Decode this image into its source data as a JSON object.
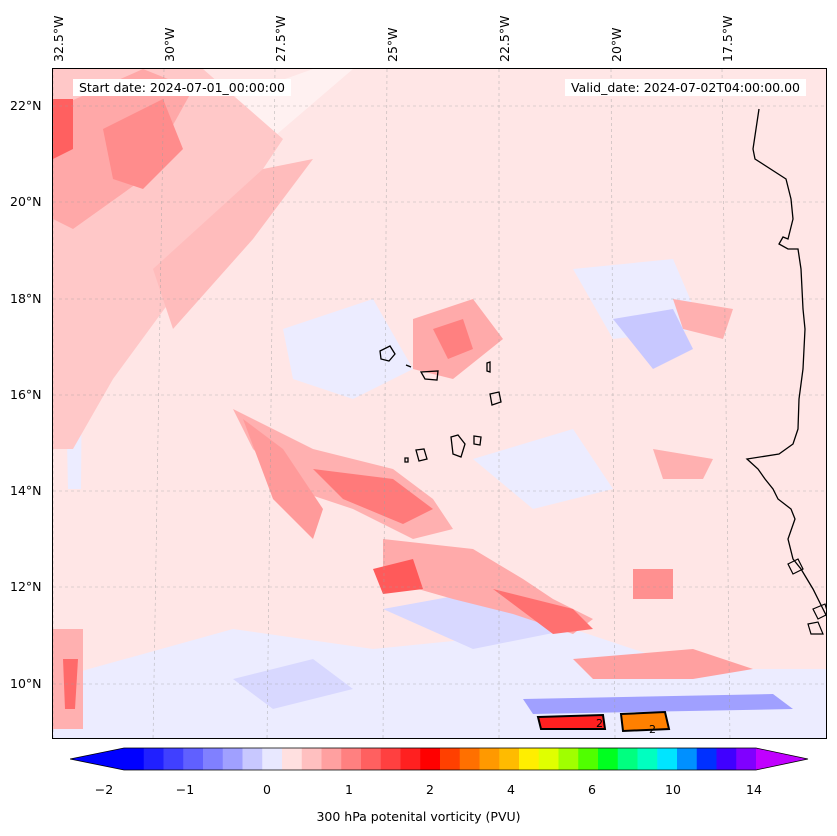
{
  "header": {
    "start_date": "Start date: 2024-07-01_00:00:00",
    "valid_date": "Valid_date: 2024-07-02T04:00:00.00"
  },
  "axes": {
    "longitude_labels": [
      "32.5°W",
      "30°W",
      "27.5°W",
      "25°W",
      "22.5°W",
      "20°W",
      "17.5°W"
    ],
    "latitude_labels": [
      "22°N",
      "20°N",
      "18°N",
      "16°N",
      "14°N",
      "12°N",
      "10°N"
    ],
    "grid": true
  },
  "map": {
    "field": "300 hPa potential vorticity",
    "contour_labels": [
      "2",
      "2"
    ],
    "coastline_color": "#000000"
  },
  "colorbar": {
    "label": "300 hPa potenital vorticity (PVU)",
    "tick_labels": [
      "−2",
      "−1",
      "0",
      "1",
      "2",
      "4",
      "6",
      "10",
      "14"
    ],
    "extend": "both",
    "colors": [
      "#0000ff",
      "#2020ff",
      "#4040ff",
      "#6060ff",
      "#8080ff",
      "#a0a0ff",
      "#c8c8ff",
      "#e8e8ff",
      "#ffe0e0",
      "#ffc0c0",
      "#ffa0a0",
      "#ff8080",
      "#ff6060",
      "#ff4040",
      "#ff2020",
      "#ff0000",
      "#ff4000",
      "#ff7000",
      "#ff9900",
      "#ffbb00",
      "#ffee00",
      "#e0ff00",
      "#a0ff00",
      "#50ff00",
      "#00ff20",
      "#00ff80",
      "#00ffc0",
      "#00e5ff",
      "#0090ff",
      "#0030ff",
      "#4000ff",
      "#8000ff"
    ],
    "under_color": "#0000ff",
    "over_color": "#c000ff"
  }
}
